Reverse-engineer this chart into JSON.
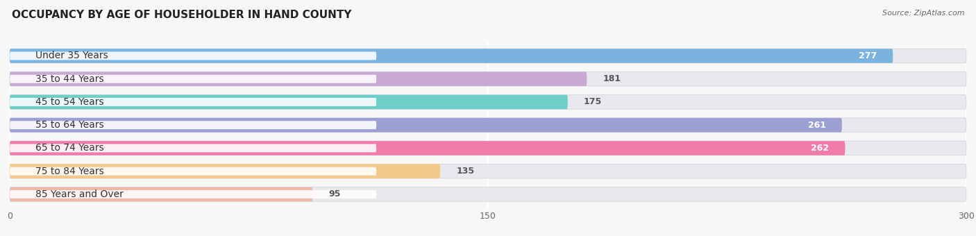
{
  "title": "OCCUPANCY BY AGE OF HOUSEHOLDER IN HAND COUNTY",
  "source": "Source: ZipAtlas.com",
  "categories": [
    "Under 35 Years",
    "35 to 44 Years",
    "45 to 54 Years",
    "55 to 64 Years",
    "65 to 74 Years",
    "75 to 84 Years",
    "85 Years and Over"
  ],
  "values": [
    277,
    181,
    175,
    261,
    262,
    135,
    95
  ],
  "bar_colors": [
    "#7ab3e0",
    "#c9a8d4",
    "#6ecfca",
    "#9b9fd4",
    "#f07caa",
    "#f5c98a",
    "#f0b8aa"
  ],
  "bar_bg_color": "#e8e8ee",
  "xlim_max": 300,
  "xticks": [
    0,
    150,
    300
  ],
  "label_fontsize": 10,
  "value_fontsize": 9,
  "title_fontsize": 11,
  "background_color": "#f7f7f7",
  "value_inside_threshold": 200
}
